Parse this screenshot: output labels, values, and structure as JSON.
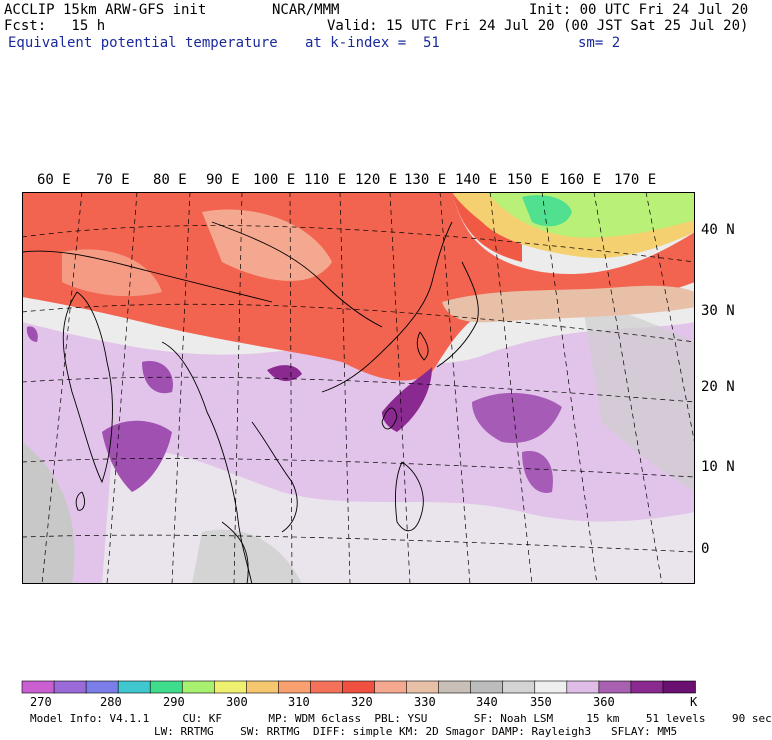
{
  "header": {
    "model": "ACCLIP 15km ARW-GFS init",
    "org": "NCAR/MMM",
    "init": "Init: 00 UTC Fri 24 Jul 20",
    "fcst": "Fcst:   15 h",
    "valid": "Valid: 15 UTC Fri 24 Jul 20 (00 JST Sat 25 Jul 20)",
    "field": "Equivalent potential temperature",
    "level": "at k-index =  51",
    "smooth": "sm= 2"
  },
  "map": {
    "lon_labels": [
      "60 E",
      "70 E",
      "80 E",
      "90 E",
      "100 E",
      "110 E",
      "120 E",
      "130 E",
      "140 E",
      "150 E",
      "160 E",
      "170 E"
    ],
    "lat_labels": [
      "40 N",
      "30 N",
      "20 N",
      "10 N",
      "0"
    ]
  },
  "colorbar": {
    "labels": [
      "270",
      "280",
      "290",
      "300",
      "310",
      "320",
      "330",
      "340",
      "350",
      "360"
    ],
    "unit": "K",
    "colors": [
      "#c95fd0",
      "#9a6ad8",
      "#7b7de8",
      "#3fc8d0",
      "#3fdc8c",
      "#a8f070",
      "#f0f070",
      "#f5c870",
      "#f8a070",
      "#f5725a",
      "#f05040",
      "#f5a890",
      "#e8c0a8",
      "#c8c0b8",
      "#bcbcbc",
      "#d4d4d4",
      "#eeeeee",
      "#e0bde6",
      "#a860b0",
      "#8a2a90",
      "#6a1070"
    ]
  },
  "footer": {
    "line1": "Model Info: V4.1.1     CU: KF       MP: WDM 6class  PBL: YSU       SF: Noah LSM     15 km    51 levels    90 sec",
    "line2": "LW: RRTMG    SW: RRTMG  DIFF: simple KM: 2D Smagor DAMP: Rayleigh3   SFLAY: MM5"
  }
}
